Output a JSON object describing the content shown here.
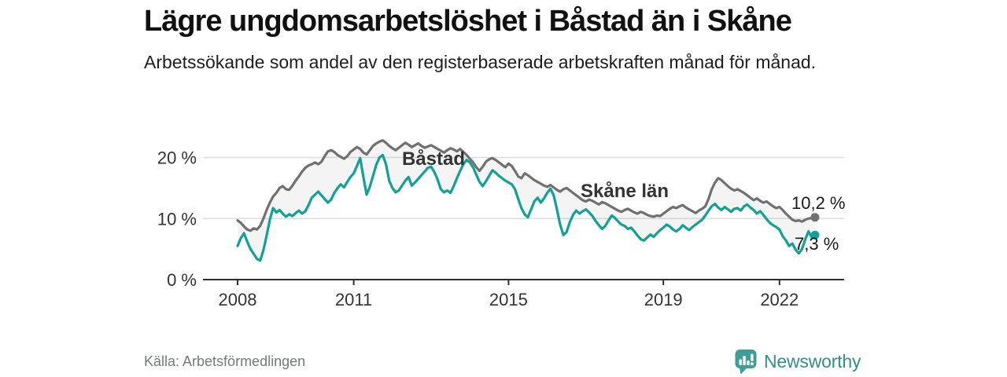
{
  "header": {
    "title": "Lägre ungdomsarbetslöshet i Båstad än i Skåne",
    "subtitle": "Arbetssökande som andel av den registerbaserade arbetskraften månad för månad."
  },
  "source": {
    "label": "Källa: Arbetsförmedlingen"
  },
  "brand": {
    "name": "Newsworthy",
    "icon": "newsworthy-speech-bubble-bar-chart-icon",
    "icon_color": "#3f9e98",
    "text_color": "#2f8f8a"
  },
  "chart_data": {
    "type": "line",
    "title": "Lägre ungdomsarbetslöshet i Båstad än i Skåne",
    "subtitle": "Arbetssökande som andel av den registerbaserade arbetskraften månad för månad.",
    "unit": "%",
    "start": 2008.0,
    "interval_years": 0.08333,
    "grid": "horizontal",
    "legend_position": "inline-labels-on-lines",
    "area_between_fill": "rgba(110,110,110,0.08)",
    "x_axis": {
      "ticks": [
        2008,
        2011,
        2015,
        2019,
        2022
      ],
      "labels": [
        "2008",
        "2011",
        "2015",
        "2019",
        "2022"
      ],
      "range": [
        2007.1,
        2023.7
      ]
    },
    "y_axis": {
      "ticks": [
        0,
        10,
        20
      ],
      "labels": [
        "0 %",
        "10 %",
        "20 %"
      ],
      "range": [
        0,
        24.5
      ]
    },
    "series": [
      {
        "name": "Skåne län",
        "color": "#707070",
        "end_label": "10,2 %",
        "end_value": 10.2,
        "values": [
          9.7,
          9.3,
          8.7,
          8.2,
          8.0,
          8.4,
          8.2,
          8.8,
          10.0,
          11.4,
          12.6,
          13.6,
          14.2,
          15.0,
          15.3,
          14.8,
          14.7,
          15.4,
          16.2,
          16.9,
          17.7,
          18.3,
          18.7,
          18.9,
          19.2,
          18.9,
          19.3,
          20.2,
          21.0,
          21.2,
          20.9,
          20.4,
          20.1,
          19.8,
          20.2,
          20.9,
          21.3,
          21.7,
          21.4,
          20.8,
          20.5,
          21.2,
          21.9,
          22.3,
          22.6,
          22.8,
          22.4,
          21.9,
          21.5,
          21.2,
          21.6,
          22.0,
          22.4,
          22.1,
          21.7,
          22.0,
          22.3,
          21.9,
          21.6,
          21.8,
          22.0,
          21.7,
          21.4,
          21.1,
          20.8,
          21.2,
          21.5,
          21.3,
          21.0,
          21.4,
          20.9,
          20.4,
          19.8,
          19.2,
          18.4,
          17.8,
          18.5,
          19.3,
          19.7,
          19.9,
          19.6,
          19.2,
          18.8,
          18.4,
          19.0,
          18.6,
          17.8,
          16.9,
          16.6,
          17.4,
          17.1,
          16.7,
          16.3,
          16.0,
          15.7,
          15.4,
          15.2,
          15.5,
          15.1,
          14.7,
          14.4,
          14.8,
          15.0,
          14.6,
          14.2,
          13.8,
          13.4,
          13.0,
          12.8,
          13.1,
          12.9,
          12.6,
          12.3,
          12.7,
          12.5,
          12.2,
          11.9,
          11.6,
          11.3,
          11.1,
          11.4,
          11.6,
          11.3,
          11.0,
          10.8,
          11.1,
          10.9,
          10.6,
          10.4,
          10.3,
          10.5,
          10.4,
          10.8,
          11.2,
          11.6,
          11.9,
          11.7,
          12.0,
          12.2,
          11.8,
          11.5,
          11.2,
          10.9,
          11.3,
          11.6,
          12.0,
          13.2,
          14.8,
          15.9,
          16.6,
          16.3,
          15.8,
          15.3,
          14.9,
          14.6,
          14.8,
          14.5,
          14.2,
          13.8,
          13.4,
          13.0,
          13.3,
          12.9,
          12.6,
          12.8,
          12.4,
          12.0,
          11.7,
          11.9,
          11.4,
          10.8,
          10.3,
          9.8,
          9.6,
          9.7,
          9.5,
          9.8,
          10.0,
          10.1,
          10.2
        ]
      },
      {
        "name": "Båstad",
        "color": "#12a195",
        "end_label": "7,3 %",
        "end_value": 7.3,
        "values": [
          5.5,
          6.8,
          7.6,
          6.2,
          5.0,
          4.2,
          3.4,
          3.1,
          4.8,
          7.2,
          9.8,
          11.7,
          11.0,
          11.4,
          10.8,
          10.3,
          10.7,
          10.4,
          10.9,
          11.3,
          10.8,
          11.2,
          12.2,
          13.4,
          13.9,
          14.4,
          13.8,
          13.2,
          12.6,
          13.1,
          14.2,
          15.0,
          15.6,
          15.1,
          16.0,
          16.8,
          17.4,
          18.6,
          19.9,
          16.8,
          13.9,
          15.2,
          17.0,
          18.8,
          20.0,
          20.4,
          18.9,
          16.2,
          15.0,
          14.3,
          14.6,
          15.4,
          16.2,
          16.8,
          15.4,
          15.9,
          16.5,
          17.1,
          17.7,
          18.3,
          18.5,
          17.6,
          16.4,
          14.8,
          14.3,
          14.6,
          14.2,
          15.3,
          16.6,
          17.8,
          18.9,
          19.6,
          19.2,
          18.4,
          17.2,
          16.0,
          15.3,
          16.1,
          17.0,
          17.9,
          17.5,
          17.0,
          16.6,
          16.2,
          15.9,
          15.6,
          14.8,
          13.2,
          11.7,
          10.7,
          10.2,
          11.5,
          12.8,
          13.4,
          12.6,
          13.3,
          14.2,
          14.9,
          13.8,
          11.5,
          9.0,
          7.3,
          7.8,
          9.4,
          10.6,
          11.3,
          10.8,
          11.2,
          11.5,
          11.0,
          10.4,
          9.6,
          8.9,
          8.3,
          8.8,
          9.7,
          10.5,
          10.1,
          9.5,
          9.0,
          8.8,
          8.3,
          8.5,
          7.9,
          7.2,
          6.6,
          6.4,
          6.9,
          7.4,
          7.0,
          7.6,
          8.1,
          8.5,
          9.0,
          8.7,
          8.2,
          7.9,
          8.3,
          8.9,
          8.5,
          8.1,
          8.6,
          9.0,
          9.4,
          9.8,
          10.5,
          11.3,
          12.0,
          12.4,
          11.8,
          11.4,
          11.9,
          11.5,
          11.1,
          11.6,
          11.7,
          11.3,
          12.0,
          12.3,
          11.8,
          11.4,
          10.8,
          11.2,
          10.6,
          9.9,
          9.3,
          8.9,
          8.6,
          8.2,
          7.1,
          6.4,
          5.5,
          5.9,
          4.9,
          4.3,
          5.0,
          6.6,
          7.9,
          6.9,
          7.3
        ]
      }
    ]
  }
}
